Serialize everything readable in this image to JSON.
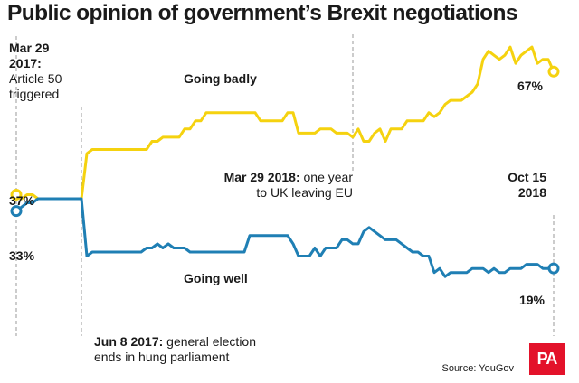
{
  "title": "Public opinion of government’s Brexit negotiations",
  "annotations": {
    "a50": {
      "date": "Mar 29",
      "line2": "2017:",
      "line3": "Article 50",
      "line4": "triggered"
    },
    "election": {
      "date": "Jun 8 2017:",
      "text1": " general election",
      "line2": "ends in hung parliament"
    },
    "one_year": {
      "date": "Mar 29 2018:",
      "text1": " one year",
      "line2": "to UK leaving EU"
    },
    "oct15": {
      "line1": "Oct 15",
      "line2": "2018"
    }
  },
  "source": "Source: YouGov",
  "logo": "PA",
  "colors": {
    "badly": "#f5d20f",
    "well": "#1f7fb4",
    "guide": "#9a9a9a"
  },
  "chart_data": {
    "type": "line",
    "title": "Public opinion of government’s Brexit negotiations",
    "xlabel": "",
    "ylabel": "",
    "x": [
      1,
      2,
      3,
      4,
      5,
      6,
      7,
      8,
      9,
      10,
      11,
      12,
      13,
      14,
      15,
      16,
      17,
      18,
      19,
      20,
      21,
      22,
      23,
      24,
      25,
      26,
      27,
      28,
      29,
      30,
      31,
      32,
      33,
      34,
      35,
      36,
      37,
      38,
      39,
      40,
      41,
      42,
      43,
      44,
      45,
      46,
      47,
      48,
      49,
      50,
      51,
      52,
      53,
      54,
      55,
      56,
      57,
      58,
      59,
      60,
      61,
      62,
      63,
      64,
      65,
      66,
      67,
      68,
      69,
      70,
      71,
      72,
      73,
      74,
      75,
      76,
      77,
      78,
      79,
      80,
      81,
      82,
      83,
      84,
      85,
      86,
      87,
      88,
      89,
      90,
      91,
      92,
      93,
      94,
      95,
      96,
      97,
      98,
      99,
      100
    ],
    "ylim": [
      10,
      75
    ],
    "events": [
      {
        "index": 0,
        "label": "Mar 29 2017: Article 50 triggered"
      },
      {
        "index": 12,
        "label": "Jun 8 2017: general election ends in hung parliament"
      },
      {
        "index": 62,
        "label": "Mar 29 2018: one year to UK leaving EU"
      },
      {
        "index": 99,
        "label": "Oct 15 2018"
      }
    ],
    "series": [
      {
        "name": "Going badly",
        "start_label": "37%",
        "end_label": "67%",
        "values": [
          37,
          36,
          37,
          37,
          36,
          36,
          36,
          36,
          36,
          36,
          36,
          36,
          36,
          47,
          48,
          48,
          48,
          48,
          48,
          48,
          48,
          48,
          48,
          48,
          48,
          50,
          50,
          51,
          51,
          51,
          51,
          53,
          53,
          55,
          55,
          57,
          57,
          57,
          57,
          57,
          57,
          57,
          57,
          57,
          57,
          55,
          55,
          55,
          55,
          55,
          57,
          57,
          52,
          52,
          52,
          52,
          53,
          53,
          53,
          52,
          52,
          52,
          51,
          53,
          50,
          50,
          52,
          53,
          50,
          53,
          53,
          53,
          55,
          55,
          55,
          55,
          57,
          56,
          57,
          59,
          60,
          60,
          60,
          61,
          62,
          64,
          70,
          72,
          71,
          70,
          71,
          73,
          69,
          71,
          72,
          73,
          69,
          70,
          70,
          67
        ]
      },
      {
        "name": "Going well",
        "start_label": "33%",
        "end_label": "19%",
        "values": [
          33,
          34,
          35,
          35,
          36,
          36,
          36,
          36,
          36,
          36,
          36,
          36,
          36,
          22,
          23,
          23,
          23,
          23,
          23,
          23,
          23,
          23,
          23,
          23,
          24,
          24,
          25,
          24,
          25,
          24,
          24,
          24,
          23,
          23,
          23,
          23,
          23,
          23,
          23,
          23,
          23,
          23,
          23,
          27,
          27,
          27,
          27,
          27,
          27,
          27,
          27,
          25,
          22,
          22,
          22,
          24,
          22,
          24,
          24,
          24,
          26,
          26,
          25,
          25,
          28,
          29,
          28,
          27,
          26,
          26,
          26,
          25,
          24,
          23,
          23,
          22,
          22,
          18,
          19,
          17,
          18,
          18,
          18,
          18,
          19,
          19,
          19,
          18,
          19,
          18,
          18,
          19,
          19,
          19,
          20,
          20,
          20,
          19,
          19,
          19
        ]
      }
    ],
    "labels": [
      {
        "series": "Going badly",
        "text": "Going badly"
      },
      {
        "series": "Going well",
        "text": "Going well"
      }
    ]
  }
}
